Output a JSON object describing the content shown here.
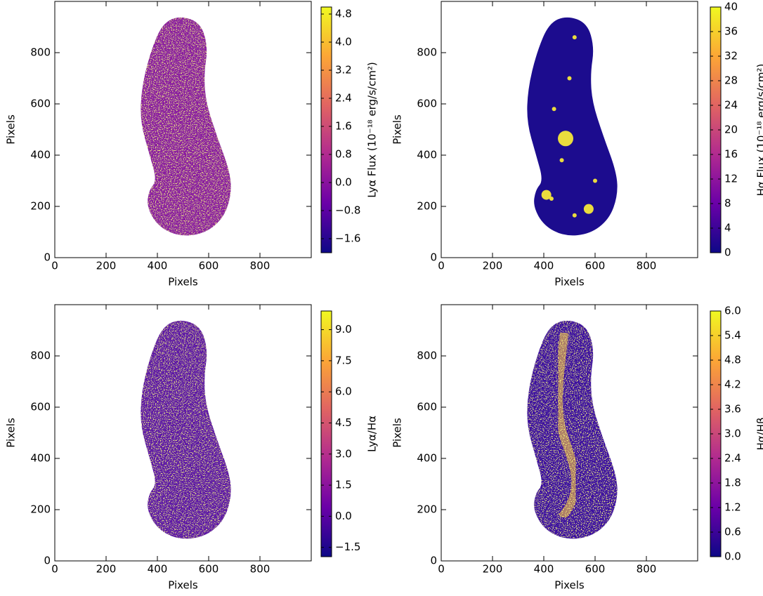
{
  "chart_data": [
    {
      "type": "image",
      "xlabel": "Pixels",
      "ylabel": "Pixels",
      "xlim": [
        0,
        1000
      ],
      "ylim": [
        0,
        1000
      ],
      "xticks": [
        0,
        200,
        400,
        600,
        800
      ],
      "yticks": [
        0,
        200,
        400,
        600,
        800
      ],
      "colorbar": {
        "label": "Lyα Flux (10⁻¹⁸ erg/s/cm²)",
        "colormap": "plasma",
        "lim": [
          -2.0,
          5.0
        ],
        "ticks": [
          {
            "value": -1.6,
            "label": "−1.6"
          },
          {
            "value": -0.8,
            "label": "−0.8"
          },
          {
            "value": 0,
            "label": "0.0"
          },
          0.8,
          1.6,
          2.4,
          3.2,
          {
            "value": 4,
            "label": "4.0"
          },
          4.8
        ]
      }
    },
    {
      "type": "image",
      "xlabel": "Pixels",
      "ylabel": "Pixels",
      "xlim": [
        0,
        1000
      ],
      "ylim": [
        0,
        1000
      ],
      "xticks": [
        0,
        200,
        400,
        600,
        800
      ],
      "yticks": [
        0,
        200,
        400,
        600,
        800
      ],
      "colorbar": {
        "label": "Hα Flux (10⁻¹⁸ erg/s/cm²)",
        "colormap": "plasma",
        "lim": [
          0,
          40
        ],
        "ticks": [
          0,
          4,
          8,
          12,
          16,
          20,
          24,
          28,
          32,
          36,
          40
        ]
      }
    },
    {
      "type": "image",
      "xlabel": "Pixels",
      "ylabel": "Pixels",
      "xlim": [
        0,
        1000
      ],
      "ylim": [
        0,
        1000
      ],
      "xticks": [
        0,
        200,
        400,
        600,
        800
      ],
      "yticks": [
        0,
        200,
        400,
        600,
        800
      ],
      "colorbar": {
        "label": "Lyα/Hα",
        "colormap": "plasma",
        "lim": [
          -1.95,
          9.9
        ],
        "ticks": [
          {
            "value": -1.5,
            "label": "−1.5"
          },
          {
            "value": 0,
            "label": "0.0"
          },
          1.5,
          {
            "value": 3,
            "label": "3.0"
          },
          4.5,
          {
            "value": 6,
            "label": "6.0"
          },
          7.5,
          {
            "value": 9,
            "label": "9.0"
          }
        ]
      }
    },
    {
      "type": "image",
      "xlabel": "Pixels",
      "ylabel": "Pixels",
      "xlim": [
        0,
        1000
      ],
      "ylim": [
        0,
        1000
      ],
      "xticks": [
        0,
        200,
        400,
        600,
        800
      ],
      "yticks": [
        0,
        200,
        400,
        600,
        800
      ],
      "colorbar": {
        "label": "Hα/Hβ",
        "colormap": "plasma",
        "lim": [
          0,
          6
        ],
        "ticks": [
          {
            "value": 0,
            "label": "0.0"
          },
          0.6,
          1.2,
          1.8,
          2.4,
          {
            "value": 3,
            "label": "3.0"
          },
          3.6,
          4.2,
          4.8,
          5.4,
          {
            "value": 6,
            "label": "6.0"
          }
        ]
      }
    }
  ]
}
